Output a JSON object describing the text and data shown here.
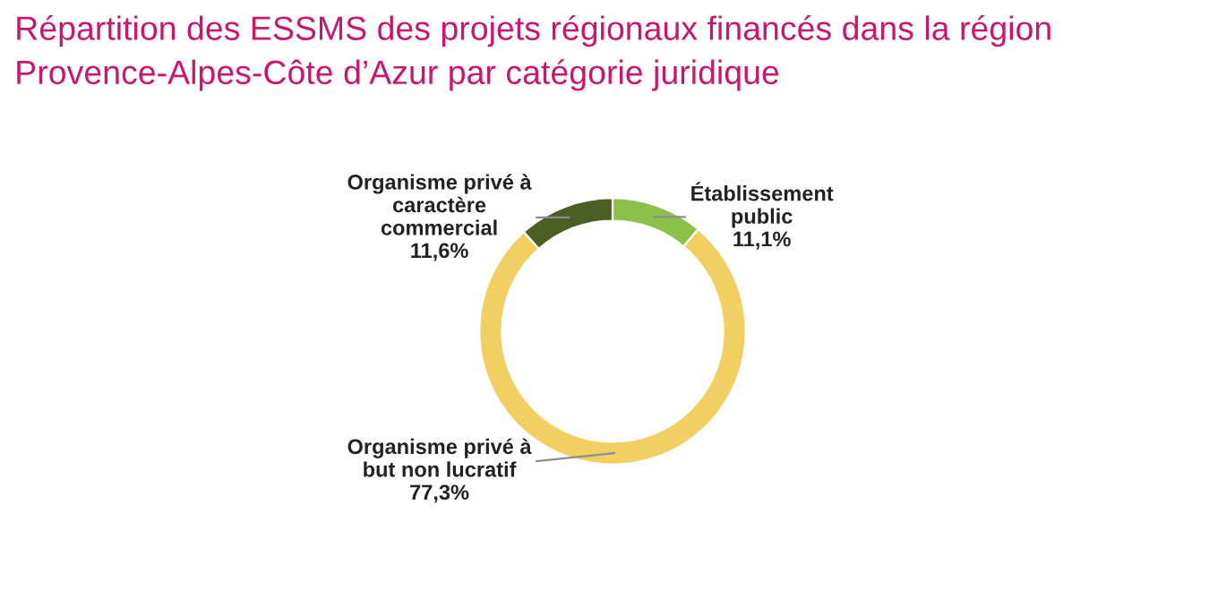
{
  "chart_data": {
    "type": "donut",
    "title": "Répartition des ESSMS des projets régionaux financés dans la région Provence-Alpes-Côte d’Azur par catégorie juridique",
    "categories": [
      "Établissement\npublic",
      "Organisme privé à\nbut non lucratif",
      "Organisme privé à\ncaractère\ncommercial"
    ],
    "values": [
      11.1,
      77.3,
      11.6
    ],
    "colors": [
      "#8cc04a",
      "#f2cf62",
      "#4b5e24"
    ],
    "value_labels": [
      "11,1%",
      "77,3%",
      "11,6%"
    ],
    "legend": false
  }
}
